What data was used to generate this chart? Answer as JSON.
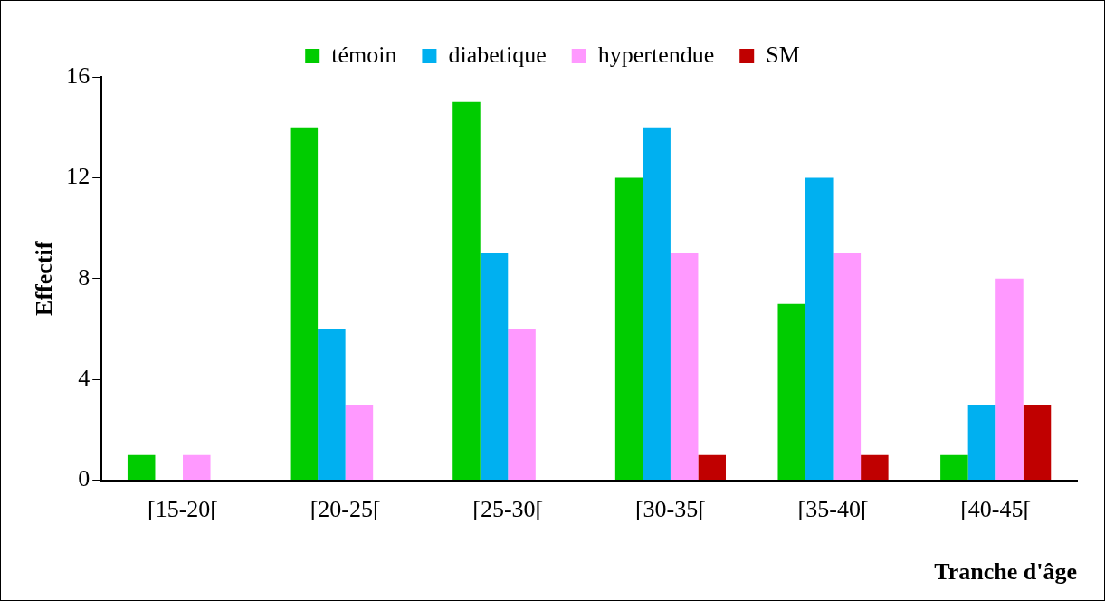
{
  "chart_data": {
    "type": "bar",
    "xlabel": "Tranche d'âge",
    "ylabel": "Effectif",
    "categories": [
      "[15-20[",
      "[20-25[",
      "[25-30[",
      "[30-35[",
      "[35-40[",
      "[40-45["
    ],
    "series": [
      {
        "name": "témoin",
        "color": "#00cc00",
        "values": [
          1,
          14,
          15,
          12,
          7,
          1
        ]
      },
      {
        "name": "diabetique",
        "color": "#00b0f0",
        "values": [
          0,
          6,
          9,
          14,
          12,
          3
        ]
      },
      {
        "name": "hypertendue",
        "color": "#ff99ff",
        "values": [
          1,
          3,
          6,
          9,
          9,
          8
        ]
      },
      {
        "name": "SM",
        "color": "#c00000",
        "values": [
          0,
          0,
          0,
          1,
          1,
          3
        ]
      }
    ],
    "ylim": [
      0,
      16
    ],
    "yticks": [
      0,
      4,
      8,
      12,
      16
    ],
    "grid": false,
    "legend": "top"
  }
}
